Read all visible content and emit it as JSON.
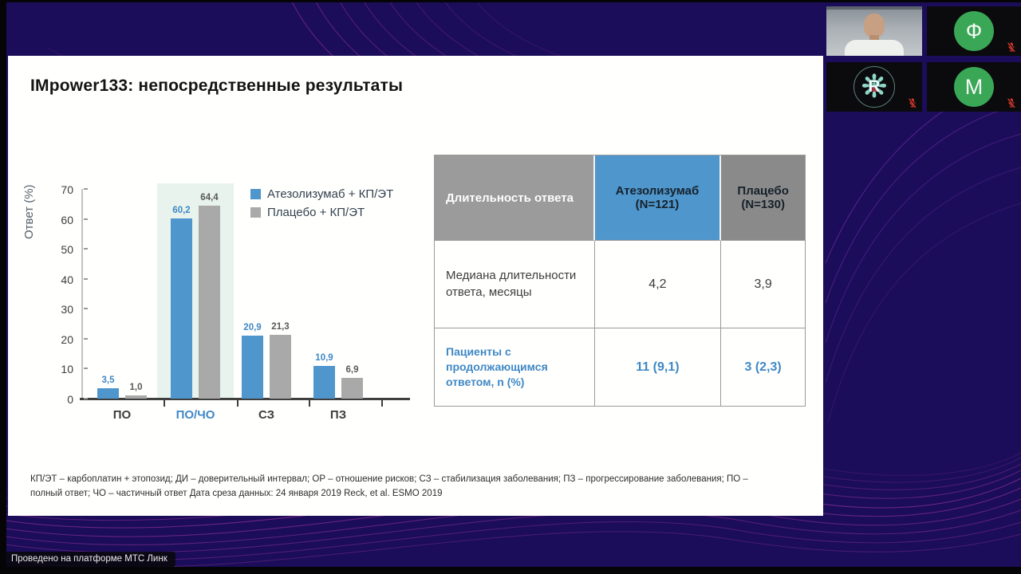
{
  "meeting": {
    "platform_badge": "Проведено на платформе МТС Линк",
    "participants": [
      {
        "kind": "video",
        "name": "presenter"
      },
      {
        "kind": "initial",
        "label": "Ф",
        "muted": true
      },
      {
        "kind": "logo",
        "label": "R",
        "muted": true
      },
      {
        "kind": "initial",
        "label": "М",
        "muted": true
      }
    ]
  },
  "slide": {
    "title": "IMpower133: непосредственные результаты",
    "footnote_lines": [
      "КП/ЭТ – карбоплатин + этопозид; ДИ – доверительный интервал; ОР – отношение рисков; СЗ – стабилизация заболевания; ПЗ – прогрессирование заболевания; ПО –",
      "полный ответ; ЧО – частичный ответ Дата среза данных: 24 января 2019 Reck, et al. ESMO 2019"
    ]
  },
  "chart_data": {
    "type": "bar",
    "title": "",
    "xlabel": "",
    "ylabel": "Ответ (%)",
    "ylim": [
      0,
      70
    ],
    "yticks": [
      0,
      10,
      20,
      30,
      40,
      50,
      60,
      70
    ],
    "grid": false,
    "legend_position": "top-right",
    "categories": [
      "ПО",
      "ПО/ЧО",
      "СЗ",
      "ПЗ"
    ],
    "highlighted_category": "ПО/ЧО",
    "series": [
      {
        "name": "Атезолизумаб + КП/ЭТ",
        "color": "#4e96cc",
        "values": [
          3.5,
          60.2,
          20.9,
          10.9
        ],
        "labels": [
          "3,5",
          "60,2",
          "20,9",
          "10,9"
        ],
        "label_color": "#3f88c5"
      },
      {
        "name": "Плацебо + КП/ЭТ",
        "color": "#a9a9a9",
        "values": [
          1.0,
          64.4,
          21.3,
          6.9
        ],
        "labels": [
          "1,0",
          "64,4",
          "21,3",
          "6,9"
        ],
        "label_color": "#595959"
      }
    ]
  },
  "table": {
    "col_headers": [
      {
        "label": "Длительность ответа",
        "sub": ""
      },
      {
        "label": "Атезолизумаб",
        "sub": "(N=121)"
      },
      {
        "label": "Плацебо",
        "sub": "(N=130)"
      }
    ],
    "rows": [
      {
        "label": "Медиана длительности ответа, месяцы",
        "values": [
          "4,2",
          "3,9"
        ],
        "style": "normal"
      },
      {
        "label": "Пациенты с продолжающимся ответом, n (%)",
        "values": [
          "11 (9,1)",
          "3 (2,3)"
        ],
        "style": "blue"
      }
    ]
  },
  "colors": {
    "background": "#1b0d5a",
    "wave_lines": "#b23aa2",
    "bar_blue": "#4e96cc",
    "bar_gray": "#a9a9a9",
    "accent_blue": "#3f88c5",
    "highlight_band": "#e8f3ed",
    "avatar_green": "#3aa757",
    "mic_red": "#e23b2e"
  }
}
